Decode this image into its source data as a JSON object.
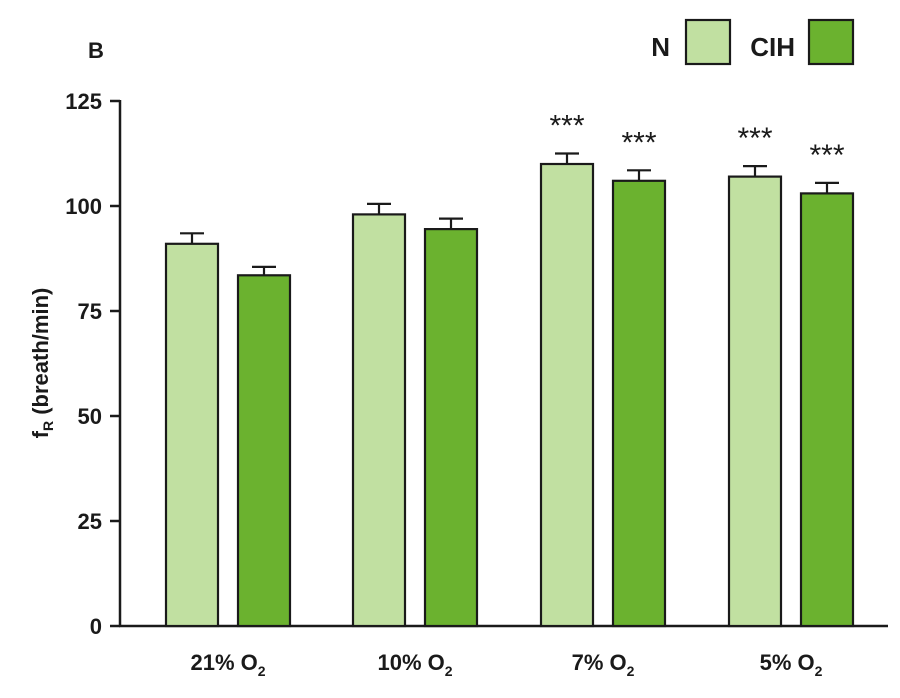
{
  "chart_data": {
    "type": "bar",
    "panel_label": "B",
    "categories": [
      {
        "main": "21% O",
        "sub": "2"
      },
      {
        "main": "10% O",
        "sub": "2"
      },
      {
        "main": "7% O",
        "sub": "2"
      },
      {
        "main": "5% O",
        "sub": "2"
      }
    ],
    "series": [
      {
        "name": "N",
        "color": "#c1e0a1",
        "values": [
          91,
          98,
          110,
          107
        ],
        "errors": [
          2.5,
          2.5,
          2.5,
          2.5
        ],
        "significance": [
          "",
          "",
          "***",
          "***"
        ]
      },
      {
        "name": "CIH",
        "color": "#6bb22f",
        "values": [
          83.5,
          94.5,
          106,
          103
        ],
        "errors": [
          2,
          2.5,
          2.5,
          2.5
        ],
        "significance": [
          "",
          "",
          "***",
          "***"
        ]
      }
    ],
    "ylabel": {
      "main": "f",
      "sub": "R",
      "rest": " (breath/min)"
    },
    "ylim": [
      0,
      125
    ],
    "yticks": [
      "0",
      "25",
      "50",
      "75",
      "100",
      "125"
    ],
    "grid": false,
    "legend_position": "top-right"
  }
}
